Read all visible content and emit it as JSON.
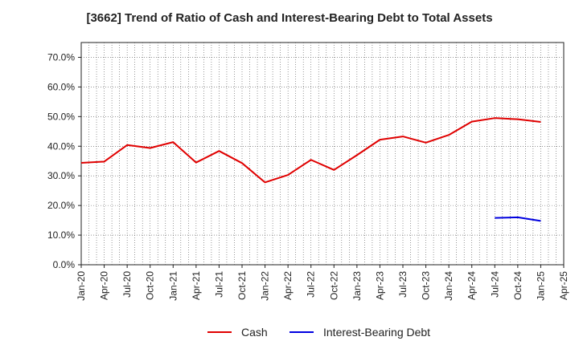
{
  "chart_data": {
    "type": "line",
    "title": "[3662]  Trend of Ratio of Cash and Interest-Bearing Debt to Total Assets",
    "xlabel": "",
    "ylabel": "",
    "x": [
      "Jan-20",
      "Apr-20",
      "Jul-20",
      "Oct-20",
      "Jan-21",
      "Apr-21",
      "Jul-21",
      "Oct-21",
      "Jan-22",
      "Apr-22",
      "Jul-22",
      "Oct-22",
      "Jan-23",
      "Apr-23",
      "Jul-23",
      "Oct-23",
      "Jan-24",
      "Apr-24",
      "Jul-24",
      "Oct-24",
      "Jan-25",
      "Apr-25"
    ],
    "ylim": [
      0,
      75
    ],
    "yticks": [
      0,
      10,
      20,
      30,
      40,
      50,
      60,
      70
    ],
    "ytick_labels": [
      "0.0%",
      "10.0%",
      "20.0%",
      "30.0%",
      "40.0%",
      "50.0%",
      "60.0%",
      "70.0%"
    ],
    "grid": true,
    "legend_position": "bottom",
    "series": [
      {
        "name": "Cash",
        "color": "#e00000",
        "values": [
          34.4,
          34.8,
          40.4,
          39.4,
          41.4,
          34.5,
          38.4,
          34.3,
          27.8,
          30.3,
          35.4,
          32.0,
          37.0,
          42.2,
          43.3,
          41.2,
          43.8,
          48.3,
          49.5,
          49.1,
          48.2,
          null
        ]
      },
      {
        "name": "Interest-Bearing Debt",
        "color": "#0000e0",
        "values": [
          null,
          null,
          null,
          null,
          null,
          null,
          null,
          null,
          null,
          null,
          null,
          null,
          null,
          null,
          null,
          null,
          null,
          null,
          15.8,
          16.0,
          14.8,
          null
        ]
      }
    ]
  }
}
